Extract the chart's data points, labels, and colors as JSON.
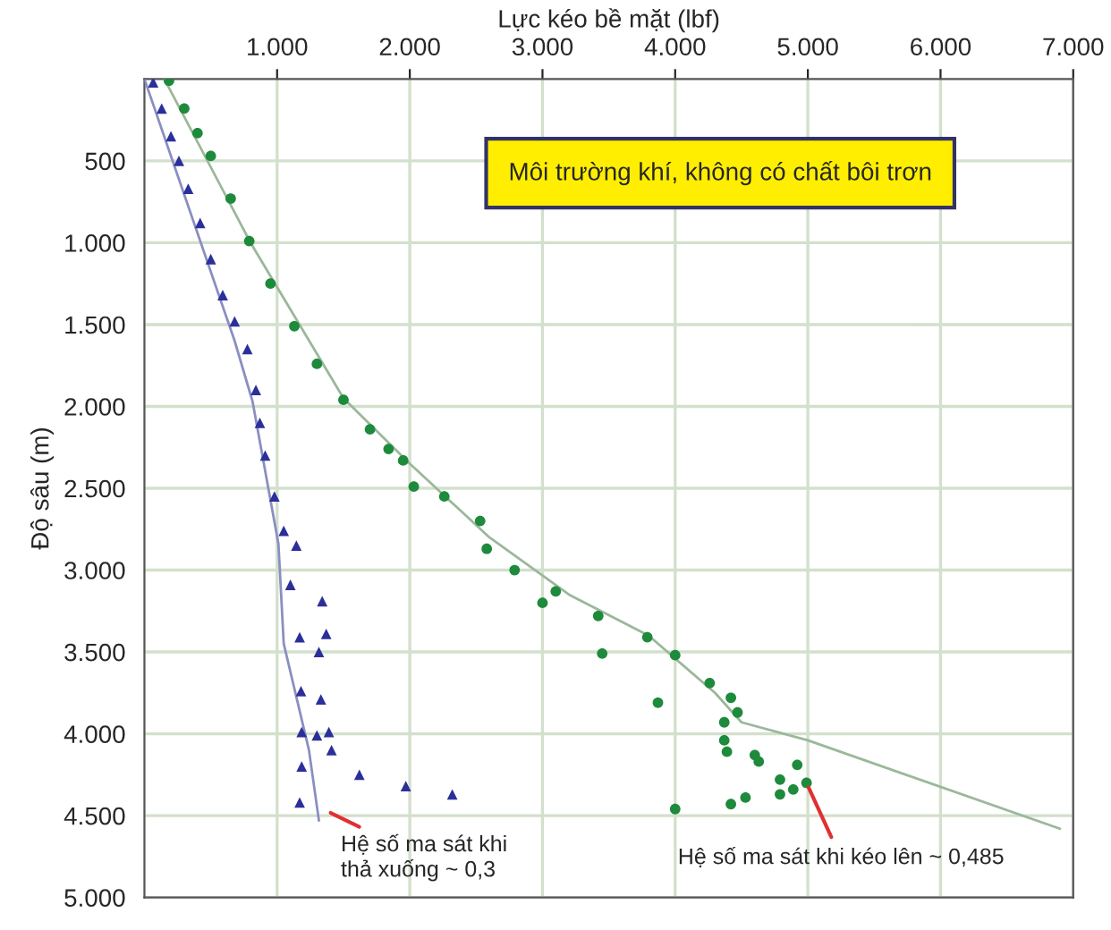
{
  "chart_data": {
    "type": "scatter",
    "xlabel": "Lực kéo bề mặt (lbf)",
    "ylabel": "Độ sâu (m)",
    "xlim": [
      0,
      7000
    ],
    "ylim": [
      5000,
      0
    ],
    "xticks": [
      {
        "value": 1000,
        "label": "1.000"
      },
      {
        "value": 2000,
        "label": "2.000"
      },
      {
        "value": 3000,
        "label": "3.000"
      },
      {
        "value": 4000,
        "label": "4.000"
      },
      {
        "value": 5000,
        "label": "5.000"
      },
      {
        "value": 6000,
        "label": "6.000"
      },
      {
        "value": 7000,
        "label": "7.000"
      }
    ],
    "yticks": [
      500,
      {
        "value": 1000,
        "label": "1.000"
      },
      {
        "value": 1500,
        "label": "1.500"
      },
      {
        "value": 2000,
        "label": "2.000"
      },
      {
        "value": 2500,
        "label": "2.500"
      },
      {
        "value": 3000,
        "label": "3.000"
      },
      {
        "value": 3500,
        "label": "3.500"
      },
      {
        "value": 4000,
        "label": "4.000"
      },
      {
        "value": 4500,
        "label": "4.500"
      },
      {
        "value": 5000,
        "label": "5.000"
      }
    ],
    "grid": true,
    "legend": false,
    "series": [
      {
        "type": "line",
        "color": "#9ab89a",
        "marker": "none",
        "line_style": "solid",
        "x": [
          150,
          800,
          1500,
          2000,
          2600,
          3200,
          3800,
          4300,
          4500,
          5000,
          6900
        ],
        "values": [
          0,
          1000,
          1950,
          2350,
          2800,
          3150,
          3400,
          3750,
          3930,
          4040,
          4580
        ]
      },
      {
        "type": "line",
        "color": "#8a8fc0",
        "marker": "none",
        "line_style": "solid",
        "x": [
          0,
          680,
          815,
          1010,
          1050,
          1240,
          1315
        ],
        "values": [
          0,
          1600,
          1970,
          2840,
          3450,
          4100,
          4530
        ]
      },
      {
        "color": "#1e8a3c",
        "marker": "circle",
        "x": [
          185,
          300,
          400,
          500,
          650,
          790,
          950,
          1130,
          1300,
          1500,
          1700,
          1840,
          1950,
          2030,
          2260,
          2530,
          2580,
          2790,
          3000,
          3100,
          3420,
          3450,
          3790,
          3870,
          4000,
          4260,
          4420,
          4470,
          4370,
          4390,
          4370,
          4600,
          4630,
          4920,
          4790,
          4790,
          4890,
          4990,
          4530,
          4420,
          4000
        ],
        "values": [
          10,
          180,
          330,
          470,
          730,
          990,
          1250,
          1510,
          1740,
          1960,
          2140,
          2260,
          2330,
          2490,
          2550,
          2700,
          2870,
          3000,
          3200,
          3130,
          3280,
          3510,
          3410,
          3810,
          3520,
          3690,
          3780,
          3870,
          3930,
          4110,
          4040,
          4130,
          4170,
          4190,
          4280,
          4370,
          4340,
          4300,
          4390,
          4430,
          4460
        ]
      },
      {
        "color": "#2b2f9a",
        "marker": "triangle",
        "x": [
          66,
          130,
          200,
          260,
          330,
          420,
          500,
          590,
          680,
          776,
          840,
          870,
          910,
          980,
          1050,
          1100,
          1170,
          1180,
          1185,
          1185,
          1170,
          1145,
          1340,
          1370,
          1315,
          1330,
          1300,
          1390,
          1410,
          1620,
          1970,
          2320
        ],
        "values": [
          20,
          180,
          350,
          500,
          670,
          880,
          1100,
          1320,
          1480,
          1650,
          1900,
          2100,
          2300,
          2550,
          2760,
          3090,
          3410,
          3740,
          3990,
          4200,
          4420,
          2850,
          3190,
          3390,
          3500,
          3790,
          4010,
          3990,
          4100,
          4250,
          4320,
          4370
        ]
      }
    ],
    "annotations": [
      "Môi trường khí, không có chất bôi trơn",
      {
        "text": "Hệ số ma sát khi\nthả xuống ~ 0,3",
        "x": 1370,
        "y": 4470
      },
      {
        "text": "Hệ số ma sát khi kéo lên ~ 0,485",
        "x": 4990,
        "y": 4300
      }
    ]
  }
}
